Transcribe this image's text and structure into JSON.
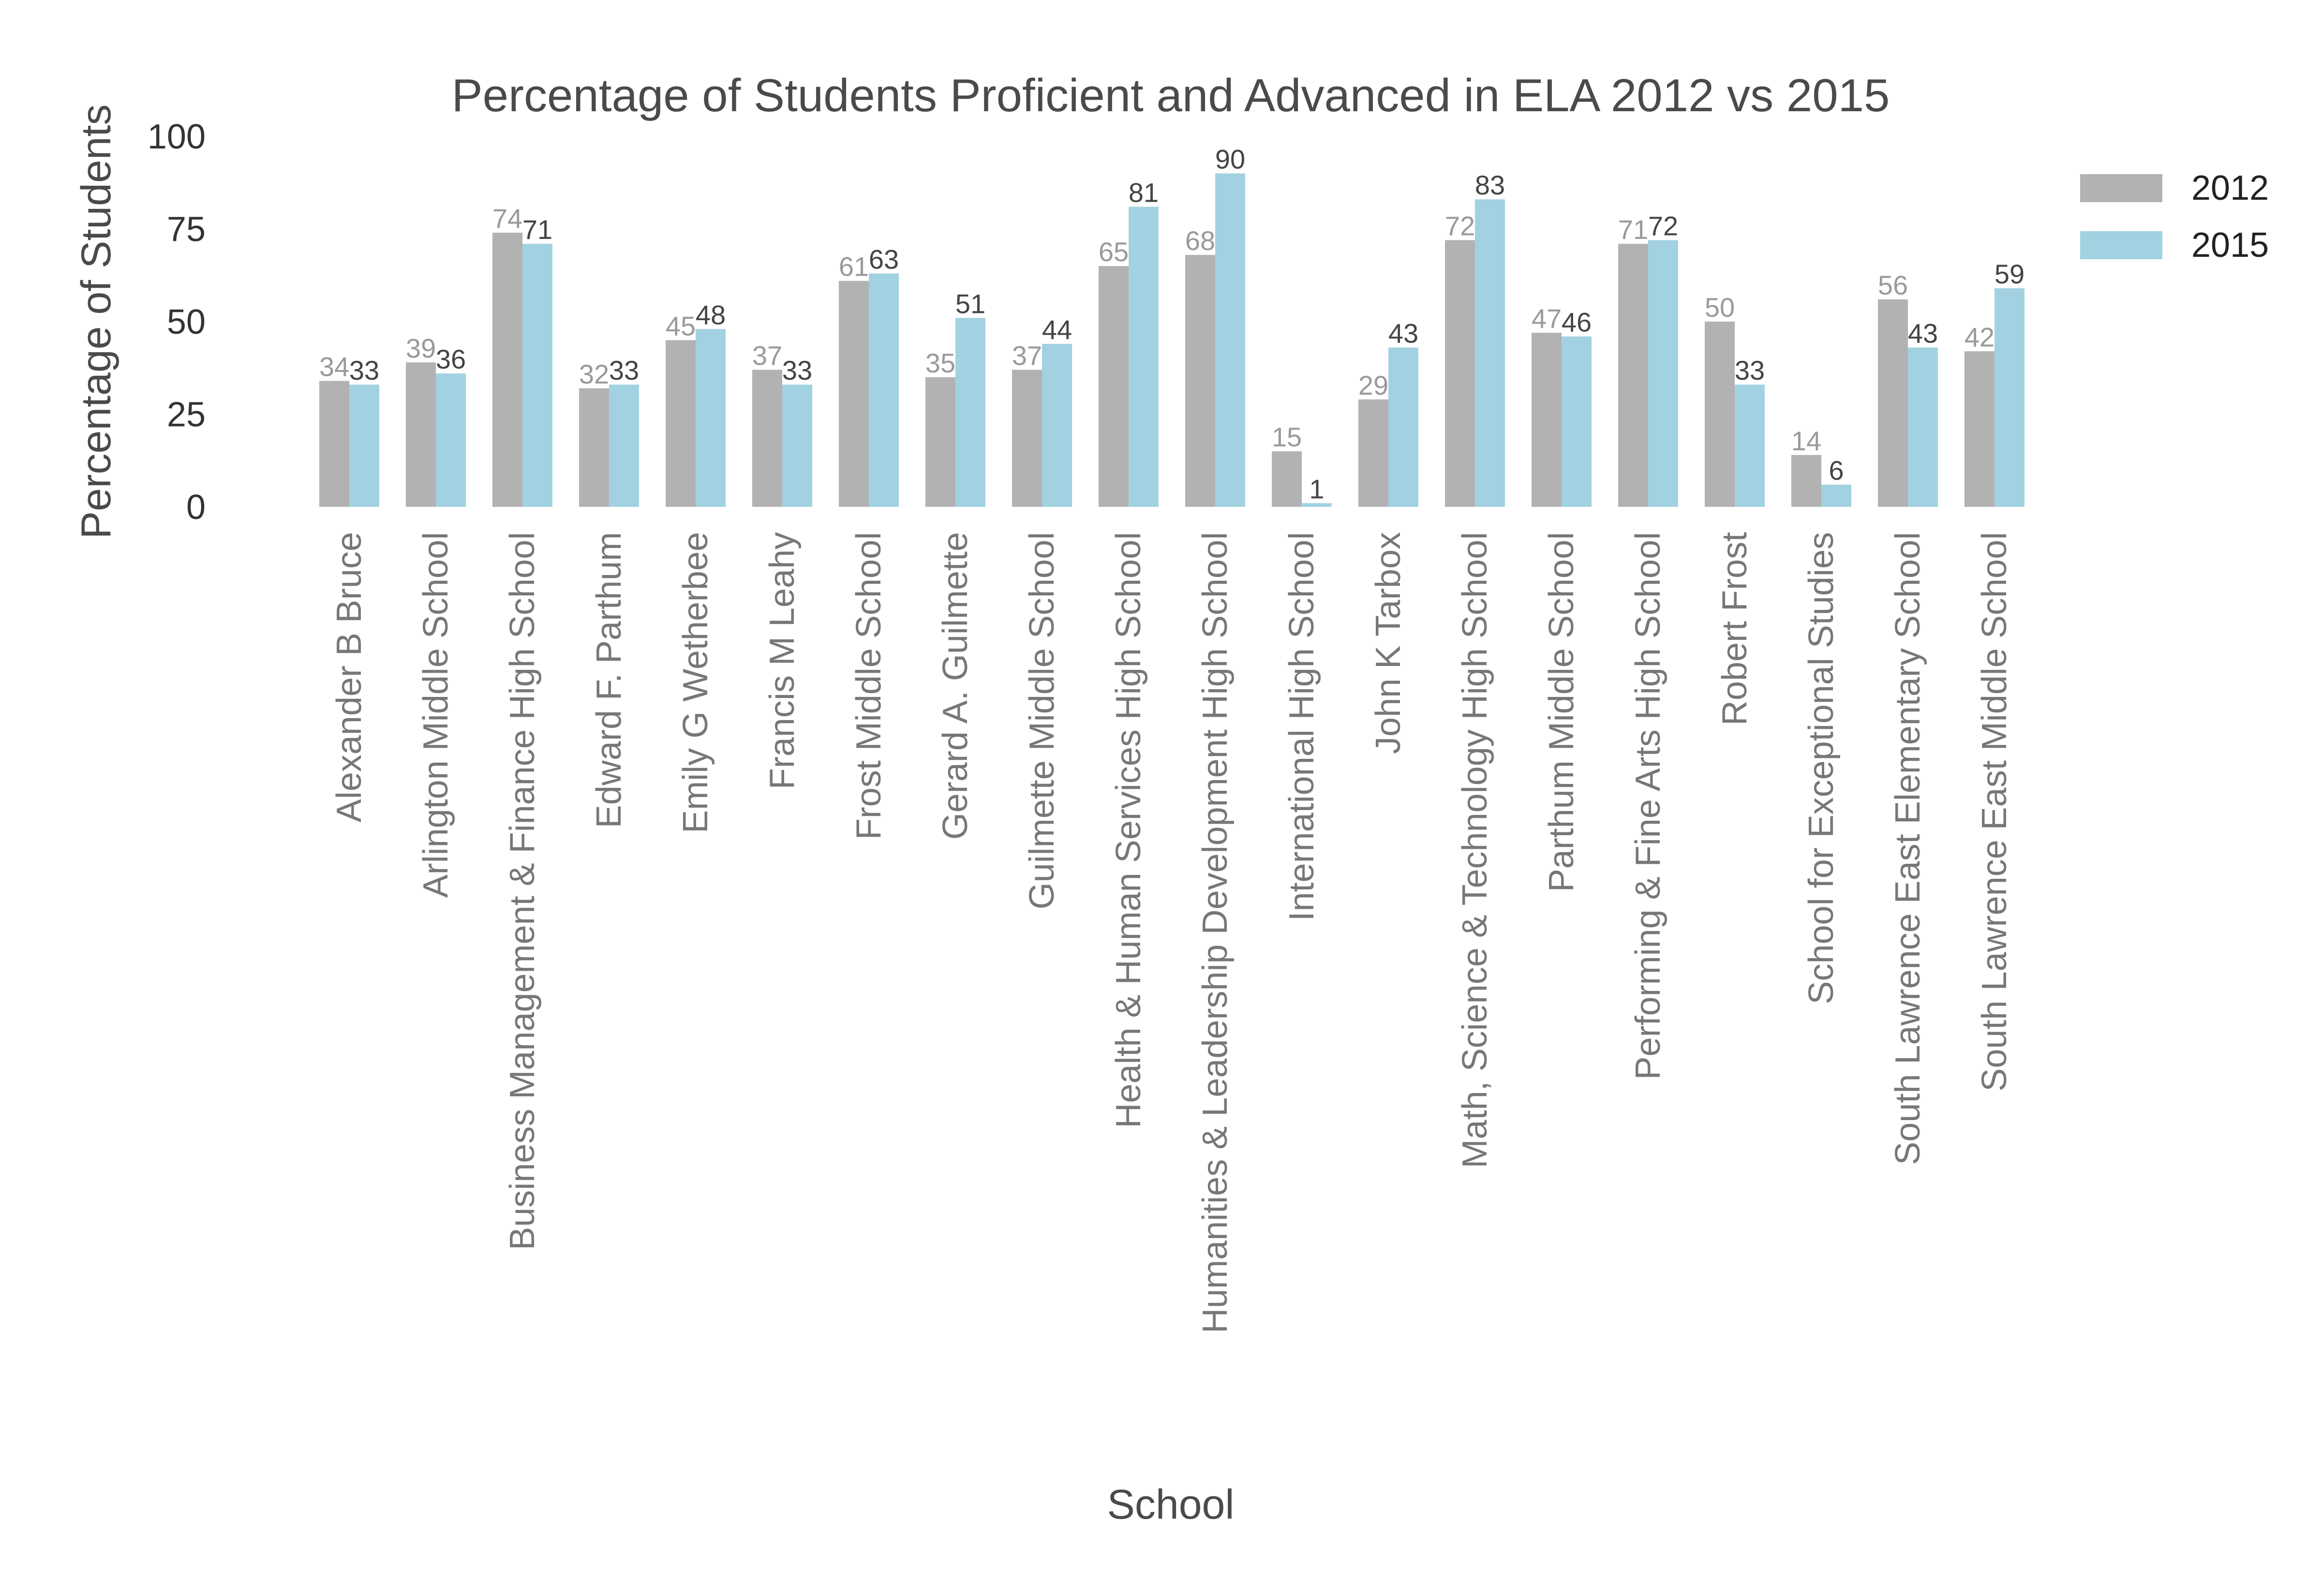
{
  "chart_data": {
    "type": "bar",
    "title": "Percentage of Students Proficient and Advanced in ELA 2012 vs 2015",
    "xlabel": "School",
    "ylabel": "Percentage of Students",
    "ylim": [
      0,
      100
    ],
    "yticks": [
      "0",
      "25",
      "50",
      "75",
      "100"
    ],
    "legend_position": "top-right",
    "grid": false,
    "categories": [
      "Alexander B Bruce",
      "Arlington Middle School",
      "Business Management & Finance High School",
      "Edward F. Parthum",
      "Emily G Wetherbee",
      "Francis M Leahy",
      "Frost Middle School",
      "Gerard A. Guilmette",
      "Guilmette Middle School",
      "Health & Human Services High School",
      "Humanities & Leadership Development High School",
      "International High School",
      "John K Tarbox",
      "Math, Science & Technology High School",
      "Parthum Middle School",
      "Performing & Fine Arts High School",
      "Robert Frost",
      "School for Exceptional Studies",
      "South Lawrence East Elementary School",
      "South Lawrence East Middle School"
    ],
    "series": [
      {
        "name": "2012",
        "color": "#b2b2b2",
        "label_color": "#9a9a9a",
        "values": [
          34,
          39,
          74,
          32,
          45,
          37,
          61,
          35,
          37,
          65,
          68,
          15,
          29,
          72,
          47,
          71,
          50,
          14,
          56,
          42
        ]
      },
      {
        "name": "2015",
        "color": "#a2d2e1",
        "label_color": "#444444",
        "values": [
          33,
          36,
          71,
          33,
          48,
          33,
          63,
          51,
          44,
          81,
          90,
          1,
          43,
          83,
          46,
          72,
          33,
          6,
          43,
          59
        ]
      }
    ]
  }
}
